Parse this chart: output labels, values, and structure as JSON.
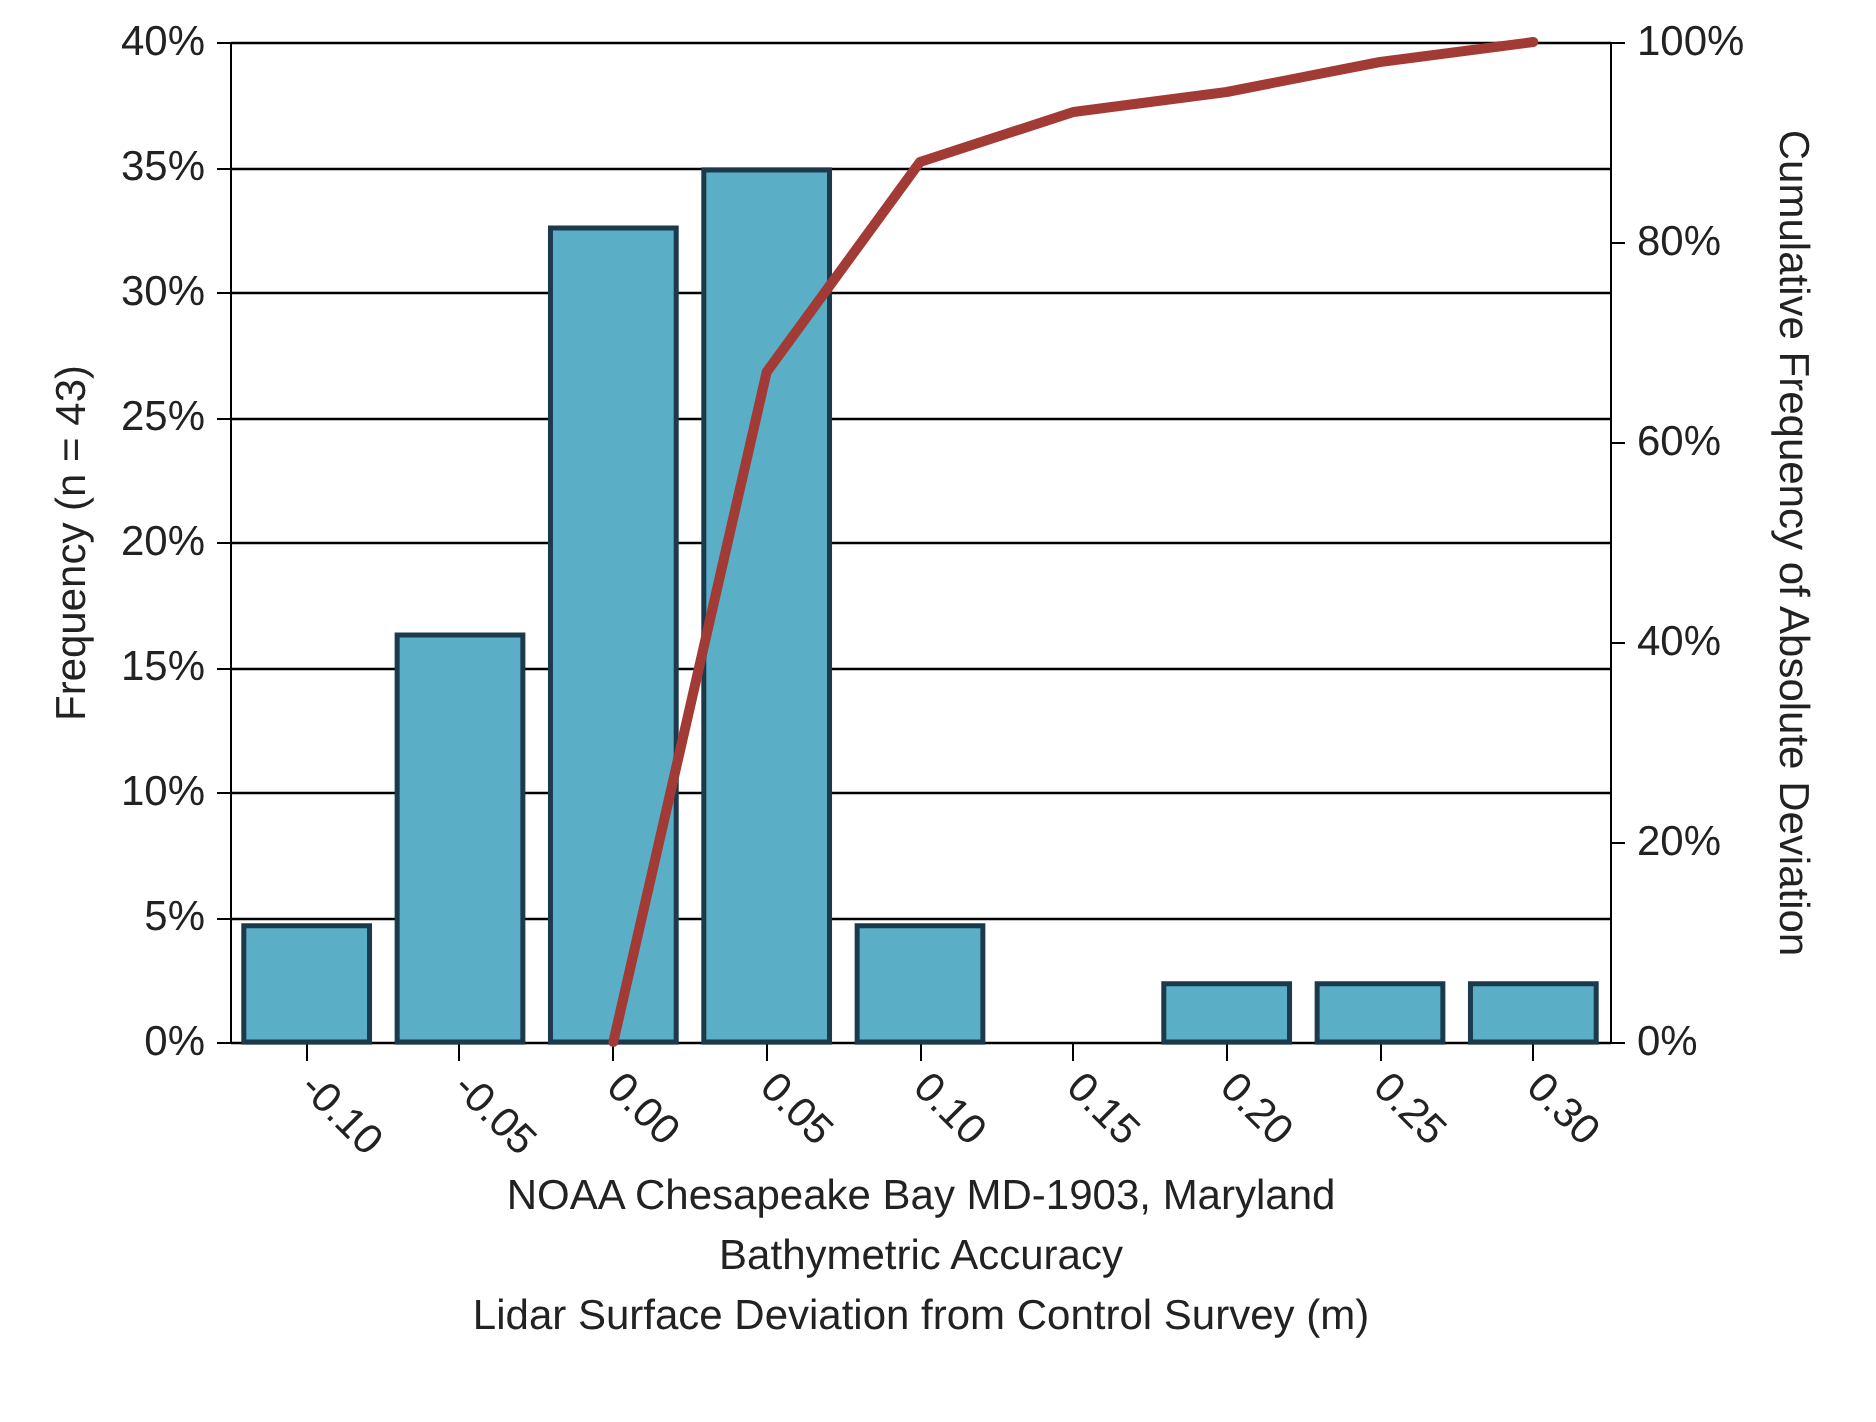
{
  "chart_data": {
    "type": "bar",
    "xlabel": "NOAA Chesapeake Bay MD-1903, Maryland\nBathymetric Accuracy\nLidar Surface Deviation from Control Survey (m)",
    "ylabel": "Frequency (n = 43)",
    "y2label": "Cumulative Frequency of Absolute Deviation",
    "categories": [
      "-0.10",
      "-0.05",
      "0.00",
      "0.05",
      "0.10",
      "0.15",
      "0.20",
      "0.25",
      "0.30"
    ],
    "series": [
      {
        "color": "#5aaec6",
        "values": [
          4.65,
          16.28,
          32.56,
          34.88,
          4.65,
          0,
          2.33,
          2.33,
          2.33
        ]
      },
      {
        "type": "line",
        "axis": "y2",
        "color": "#a23b36",
        "values": [
          null,
          null,
          0,
          67,
          88,
          93,
          95,
          98,
          100
        ]
      }
    ],
    "ylim": [
      0,
      40
    ],
    "yticks": [
      {
        "value": 0,
        "label": "0%"
      },
      {
        "value": 5,
        "label": "5%"
      },
      {
        "value": 10,
        "label": "10%"
      },
      {
        "value": 15,
        "label": "15%"
      },
      {
        "value": 20,
        "label": "20%"
      },
      {
        "value": 25,
        "label": "25%"
      },
      {
        "value": 30,
        "label": "30%"
      },
      {
        "value": 35,
        "label": "35%"
      },
      {
        "value": 40,
        "label": "40%"
      }
    ],
    "y2lim": [
      0,
      100
    ],
    "y2ticks": [
      {
        "value": 0,
        "label": "0%"
      },
      {
        "value": 20,
        "label": "20%"
      },
      {
        "value": 40,
        "label": "40%"
      },
      {
        "value": 60,
        "label": "60%"
      },
      {
        "value": 80,
        "label": "80%"
      },
      {
        "value": 100,
        "label": "100%"
      }
    ],
    "grid": "y"
  }
}
